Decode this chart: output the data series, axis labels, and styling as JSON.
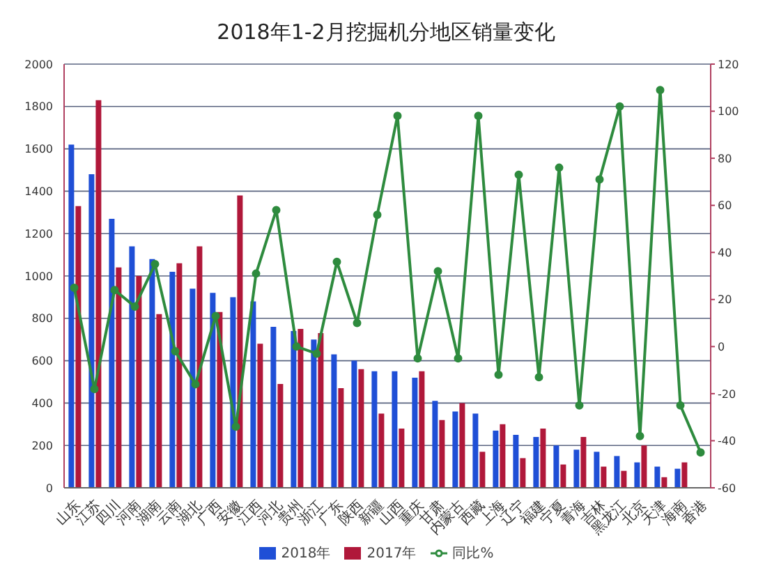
{
  "chart_data": {
    "type": "bar",
    "title": "2018年1-2月挖掘机分地区销量变化",
    "categories": [
      "山东",
      "江苏",
      "四川",
      "河南",
      "湖南",
      "云南",
      "湖北",
      "广西",
      "安徽",
      "江西",
      "河北",
      "贵州",
      "浙江",
      "广东",
      "陕西",
      "新疆",
      "山西",
      "重庆",
      "甘肃",
      "内蒙古",
      "西藏",
      "上海",
      "辽宁",
      "福建",
      "宁夏",
      "青海",
      "吉林",
      "黑龙江",
      "北京",
      "天津",
      "海南",
      "香港"
    ],
    "series": [
      {
        "name": "2018年",
        "color": "#1f4fd6",
        "values": [
          1620,
          1480,
          1270,
          1140,
          1080,
          1020,
          940,
          920,
          900,
          880,
          760,
          740,
          700,
          630,
          600,
          550,
          550,
          520,
          410,
          360,
          350,
          270,
          250,
          240,
          200,
          180,
          170,
          150,
          120,
          100,
          90,
          null
        ]
      },
      {
        "name": "2017年",
        "color": "#b0183a",
        "values": [
          1330,
          1830,
          1040,
          1000,
          820,
          1060,
          1140,
          830,
          1380,
          680,
          490,
          750,
          730,
          470,
          560,
          350,
          280,
          550,
          320,
          400,
          170,
          300,
          140,
          280,
          110,
          240,
          100,
          80,
          200,
          50,
          120,
          null
        ]
      },
      {
        "name": "同比%",
        "type": "line",
        "axis": "y2",
        "color": "#2e8b3e",
        "values": [
          25,
          -18,
          24,
          17,
          35,
          -2,
          -16,
          13,
          -34,
          31,
          58,
          0,
          -3,
          36,
          10,
          56,
          98,
          -5,
          32,
          -5,
          98,
          -12,
          73,
          -13,
          76,
          -25,
          71,
          102,
          -38,
          109,
          -25,
          -45
        ]
      }
    ],
    "ylim": [
      0,
      2000
    ],
    "yticks": [
      0,
      200,
      400,
      600,
      800,
      1000,
      1200,
      1400,
      1600,
      1800,
      2000
    ],
    "y2lim": [
      -60,
      120
    ],
    "y2ticks": [
      -60,
      -40,
      -20,
      0,
      20,
      40,
      60,
      80,
      100,
      120
    ],
    "grid": "y",
    "legend": "bottom",
    "marker": "circle"
  }
}
